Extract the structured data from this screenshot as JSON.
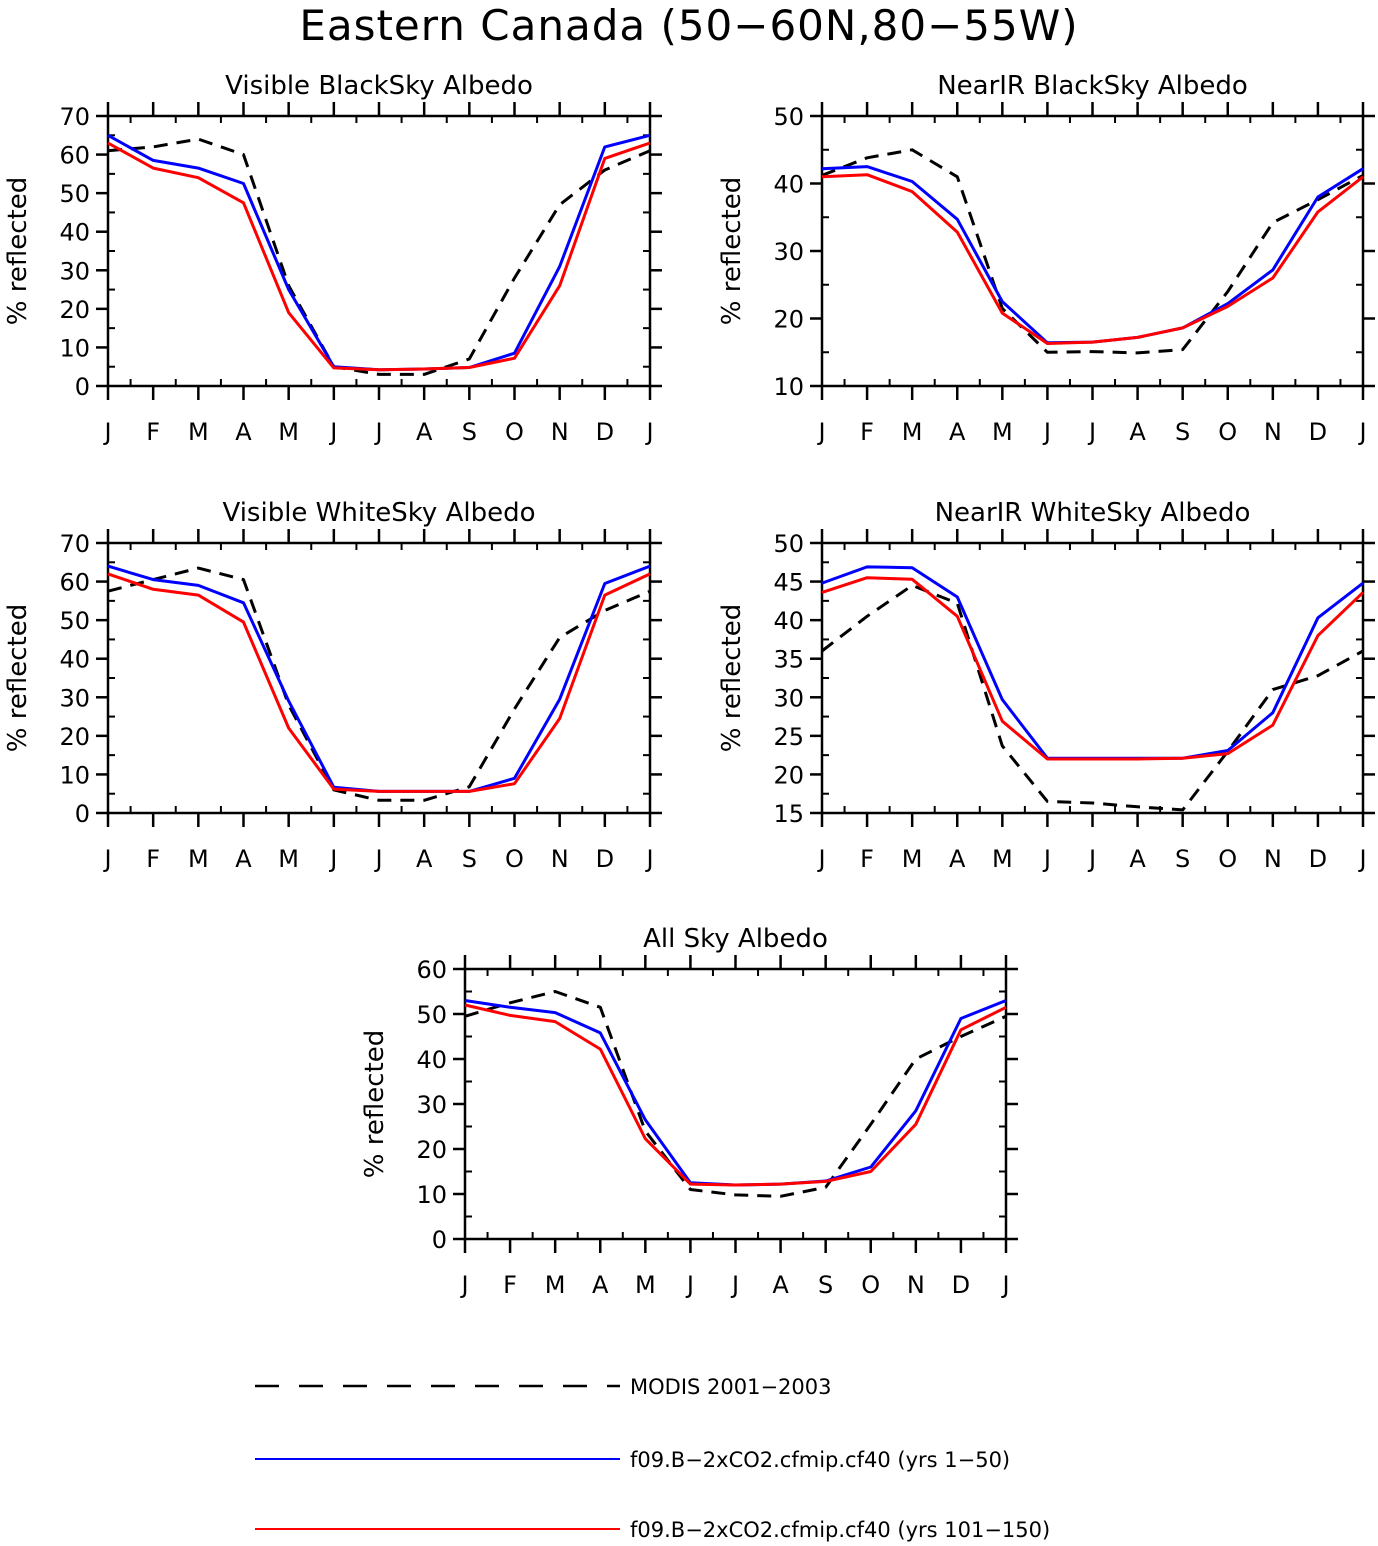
{
  "title": "Eastern Canada (50−60N,80−55W)",
  "colors": {
    "modis": "#000000",
    "run1": "#0000ff",
    "run2": "#ff0000"
  },
  "legend": [
    {
      "key": "modis",
      "label": "MODIS 2001−2003",
      "style": "dashed"
    },
    {
      "key": "run1",
      "label": "f09.B−2xCO2.cfmip.cf40 (yrs 1−50)",
      "style": "solid"
    },
    {
      "key": "run2",
      "label": "f09.B−2xCO2.cfmip.cf40 (yrs 101−150)",
      "style": "solid"
    }
  ],
  "chart_data": [
    {
      "type": "line",
      "title": "Visible BlackSky Albedo",
      "ylabel": "% reflected",
      "xlabel": "",
      "categories": [
        "J",
        "F",
        "M",
        "A",
        "M",
        "J",
        "J",
        "A",
        "S",
        "O",
        "N",
        "D",
        "J"
      ],
      "ylim": [
        0,
        70
      ],
      "yticks": [
        0,
        10,
        20,
        30,
        40,
        50,
        60,
        70
      ],
      "series": [
        {
          "key": "modis",
          "values": [
            61,
            62,
            64,
            60,
            26,
            5,
            3,
            3,
            7,
            28,
            47,
            56,
            61
          ]
        },
        {
          "key": "run1",
          "values": [
            65,
            58.5,
            56.5,
            52.5,
            25,
            5,
            4.2,
            4.4,
            4.8,
            8.5,
            31,
            62,
            65
          ]
        },
        {
          "key": "run2",
          "values": [
            63,
            56.5,
            54,
            47.5,
            19,
            4.7,
            4.2,
            4.4,
            4.8,
            7.2,
            26,
            59,
            63
          ]
        }
      ]
    },
    {
      "type": "line",
      "title": "NearIR BlackSky Albedo",
      "ylabel": "% reflected",
      "xlabel": "",
      "categories": [
        "J",
        "F",
        "M",
        "A",
        "M",
        "J",
        "J",
        "A",
        "S",
        "O",
        "N",
        "D",
        "J"
      ],
      "ylim": [
        10,
        50
      ],
      "yticks": [
        10,
        20,
        30,
        40,
        50
      ],
      "series": [
        {
          "key": "modis",
          "values": [
            41.2,
            43.8,
            45,
            41,
            21.5,
            15,
            15.1,
            14.9,
            15.4,
            24,
            34.2,
            37.6,
            41.2
          ]
        },
        {
          "key": "run1",
          "values": [
            42.2,
            42.5,
            40.3,
            34.7,
            22.5,
            16.4,
            16.5,
            17.2,
            18.6,
            22.2,
            27.2,
            38,
            42.2
          ]
        },
        {
          "key": "run2",
          "values": [
            41,
            41.3,
            38.8,
            32.8,
            20.8,
            16.3,
            16.5,
            17.2,
            18.6,
            21.8,
            26,
            35.8,
            41
          ]
        }
      ]
    },
    {
      "type": "line",
      "title": "Visible WhiteSky Albedo",
      "ylabel": "% reflected",
      "xlabel": "",
      "categories": [
        "J",
        "F",
        "M",
        "A",
        "M",
        "J",
        "J",
        "A",
        "S",
        "O",
        "N",
        "D",
        "J"
      ],
      "ylim": [
        0,
        70
      ],
      "yticks": [
        0,
        10,
        20,
        30,
        40,
        50,
        60,
        70
      ],
      "series": [
        {
          "key": "modis",
          "values": [
            57.5,
            60.5,
            63.5,
            60.5,
            28,
            6,
            3.3,
            3.3,
            6.8,
            27,
            45.5,
            52.5,
            57.5
          ]
        },
        {
          "key": "run1",
          "values": [
            64,
            60.5,
            59,
            54.5,
            29,
            6.7,
            5.6,
            5.6,
            5.6,
            9,
            29.5,
            59.5,
            64
          ]
        },
        {
          "key": "run2",
          "values": [
            62,
            58,
            56.5,
            49.5,
            22,
            6.2,
            5.6,
            5.6,
            5.6,
            7.6,
            24.5,
            56.5,
            62
          ]
        }
      ]
    },
    {
      "type": "line",
      "title": "NearIR WhiteSky Albedo",
      "ylabel": "% reflected",
      "xlabel": "",
      "categories": [
        "J",
        "F",
        "M",
        "A",
        "M",
        "J",
        "J",
        "A",
        "S",
        "O",
        "N",
        "D",
        "J"
      ],
      "ylim": [
        15,
        50
      ],
      "yticks": [
        15,
        20,
        25,
        30,
        35,
        40,
        45,
        50
      ],
      "series": [
        {
          "key": "modis",
          "values": [
            36,
            40.5,
            44.5,
            42.2,
            23.7,
            16.5,
            16.3,
            15.8,
            15.4,
            23,
            31,
            32.8,
            36
          ]
        },
        {
          "key": "run1",
          "values": [
            44.8,
            46.9,
            46.8,
            43,
            29.7,
            22.1,
            22.1,
            22.1,
            22.1,
            23.1,
            28,
            40.3,
            44.8
          ]
        },
        {
          "key": "run2",
          "values": [
            43.6,
            45.5,
            45.3,
            40.5,
            26.9,
            22,
            22,
            22,
            22.1,
            22.7,
            26.4,
            38,
            43.6
          ]
        }
      ]
    },
    {
      "type": "line",
      "title": "All Sky Albedo",
      "ylabel": "% reflected",
      "xlabel": "",
      "categories": [
        "J",
        "F",
        "M",
        "A",
        "M",
        "J",
        "J",
        "A",
        "S",
        "O",
        "N",
        "D",
        "J"
      ],
      "ylim": [
        0,
        60
      ],
      "yticks": [
        0,
        10,
        20,
        30,
        40,
        50,
        60
      ],
      "series": [
        {
          "key": "modis",
          "values": [
            49.5,
            52.5,
            55,
            51.5,
            24,
            11,
            9.8,
            9.5,
            11.5,
            25.5,
            40,
            45,
            49.5
          ]
        },
        {
          "key": "run1",
          "values": [
            53,
            51.5,
            50.3,
            45.8,
            26.5,
            12.5,
            12,
            12.2,
            12.9,
            16,
            28.5,
            49,
            53
          ]
        },
        {
          "key": "run2",
          "values": [
            52,
            49.7,
            48.3,
            42.2,
            22.3,
            12.2,
            12,
            12.2,
            12.8,
            15,
            25.5,
            46.5,
            51.5
          ]
        }
      ]
    }
  ]
}
